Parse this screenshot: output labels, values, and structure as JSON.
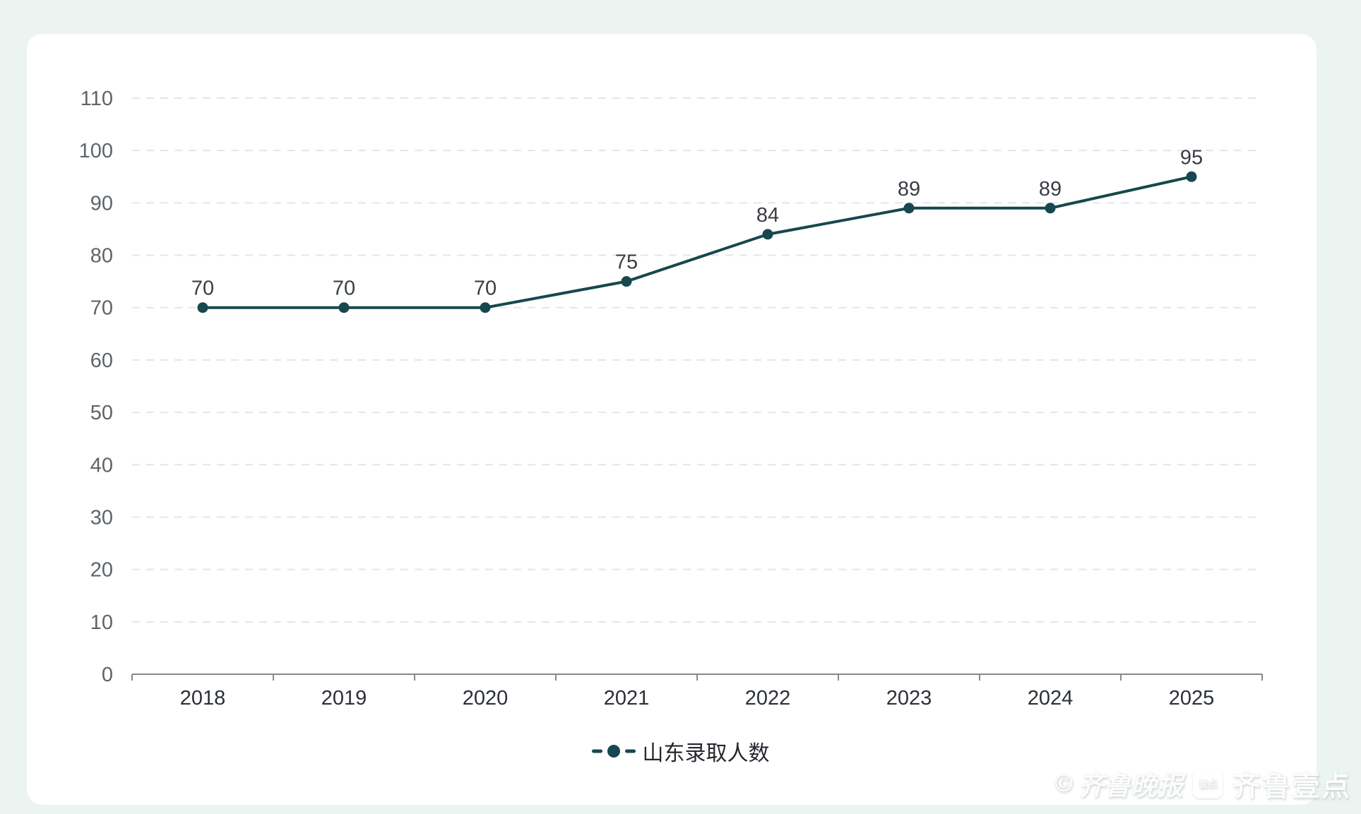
{
  "chart_data": {
    "type": "line",
    "categories": [
      "2018",
      "2019",
      "2020",
      "2021",
      "2022",
      "2023",
      "2024",
      "2025"
    ],
    "series": [
      {
        "name": "山东录取人数",
        "values": [
          70,
          70,
          70,
          75,
          84,
          89,
          89,
          95
        ]
      }
    ],
    "title": "",
    "xlabel": "",
    "ylabel": "",
    "ylim": [
      0,
      110
    ],
    "y_tick_step": 10,
    "y_tick_labels": [
      "0",
      "10",
      "20",
      "30",
      "40",
      "50",
      "60",
      "70",
      "80",
      "90",
      "100",
      "110"
    ],
    "grid": "horizontal-dashed",
    "legend_position": "bottom-center",
    "data_labels": true
  },
  "legend": {
    "marker": "dash-dot-dash"
  },
  "watermark": {
    "copyright": "©",
    "script_text": "齐鲁晚报",
    "icon_text": "壹点",
    "brand_text": "齐鲁壹点"
  },
  "colors": {
    "accent": "#16484e",
    "grid": "#e3e5ed",
    "axis": "#85898f",
    "y_label": "#5f6469",
    "x_label": "#2b3038",
    "data_label": "#3a3e44",
    "legend_text": "#24282e",
    "page_bg": "#ecf4f2",
    "card_bg": "#ffffff"
  }
}
